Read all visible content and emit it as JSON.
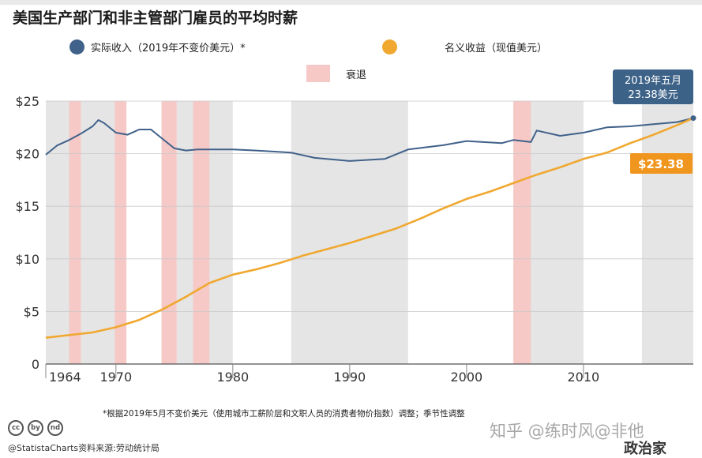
{
  "subtitle": "美国生产部门和非主管部门雇员的平均时薪",
  "legend": {
    "real": "实际收入（2019年不变价美元）*",
    "nominal": "名义收益（现值美元）",
    "recession": "衰退"
  },
  "callout": {
    "line1": "2019年五月",
    "line2": "23.38美元"
  },
  "end_badge": "$23.38",
  "footnote": "*根据2019年5月不变价美元（使用城市工薪阶层和文职人员的消费者物价指数）调整；季节性调整",
  "source": "@StatistaCharts资料来源:劳动统计局",
  "cc_icons": [
    "cc",
    "by",
    "nd"
  ],
  "watermark": "知乎 @练时风@非他",
  "brand": "政治家",
  "colors": {
    "real": "#40618a",
    "nominal": "#f0a830",
    "recession": "#f6c9c7",
    "band": "#e5e5e5",
    "badge": "#f0961e",
    "callout": "#3d6288"
  },
  "chart_data": {
    "type": "line",
    "x_range": [
      1964,
      2019.4
    ],
    "ylim": [
      0,
      25
    ],
    "x_ticks": [
      1964,
      1970,
      1980,
      1990,
      2000,
      2010
    ],
    "x_tick_labels": [
      "1964",
      "1970",
      "1980",
      "1990",
      "2000",
      "2010"
    ],
    "y_ticks": [
      0,
      5,
      10,
      15,
      20,
      25
    ],
    "y_tick_labels": [
      "0",
      "$5",
      "$10",
      "$15",
      "$20",
      "$25"
    ],
    "grid": true,
    "shaded_periods": [
      [
        1964,
        1970
      ],
      [
        1975.2,
        1980
      ],
      [
        1985,
        1995
      ],
      [
        2005,
        2010
      ],
      [
        2015,
        2019.4
      ]
    ],
    "recessions": [
      [
        1966,
        1967
      ],
      [
        1969.9,
        1970.9
      ],
      [
        1973.9,
        1975.2
      ],
      [
        1976.6,
        1978
      ]
    ],
    "recessions_late": [
      [
        2004,
        2005.5
      ]
    ],
    "series": [
      {
        "name": "实际收入（2019年不变价美元）*",
        "x": [
          1964,
          1965,
          1966,
          1967,
          1968,
          1968.5,
          1969,
          1970,
          1971,
          1972,
          1973,
          1974,
          1975,
          1976,
          1977,
          1978,
          1980,
          1982,
          1985,
          1987,
          1990,
          1993,
          1995,
          1998,
          2000,
          2003,
          2004,
          2005.5,
          2006,
          2008,
          2010,
          2012,
          2014,
          2016,
          2018,
          2019.4
        ],
        "y": [
          19.9,
          20.8,
          21.3,
          21.9,
          22.6,
          23.2,
          22.9,
          22.0,
          21.8,
          22.3,
          22.3,
          21.4,
          20.5,
          20.3,
          20.4,
          20.4,
          20.4,
          20.3,
          20.1,
          19.6,
          19.3,
          19.5,
          20.4,
          20.8,
          21.2,
          21.0,
          21.3,
          21.1,
          22.2,
          21.7,
          22.0,
          22.5,
          22.6,
          22.8,
          23.0,
          23.38
        ]
      },
      {
        "name": "名义收益（现值美元）",
        "x": [
          1964,
          1968,
          1970,
          1972,
          1974,
          1976,
          1978,
          1980,
          1982,
          1984,
          1986,
          1988,
          1990,
          1992,
          1994,
          1996,
          1998,
          2000,
          2002,
          2004,
          2006,
          2008,
          2010,
          2012,
          2014,
          2016,
          2018,
          2019.4
        ],
        "y": [
          2.5,
          3.0,
          3.5,
          4.2,
          5.2,
          6.4,
          7.7,
          8.5,
          9.0,
          9.6,
          10.3,
          10.9,
          11.5,
          12.2,
          12.9,
          13.8,
          14.8,
          15.7,
          16.4,
          17.2,
          18.0,
          18.7,
          19.5,
          20.1,
          21.0,
          21.8,
          22.7,
          23.38
        ]
      }
    ]
  }
}
